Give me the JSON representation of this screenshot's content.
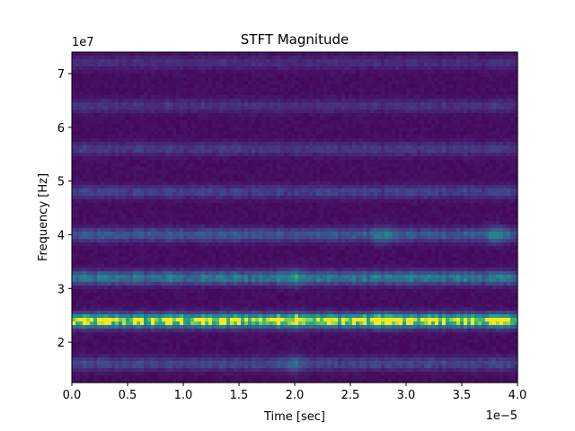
{
  "chart_data": {
    "type": "heatmap",
    "title": "STFT Magnitude",
    "xlabel": "Time [sec]",
    "ylabel": "Frequency [Hz]",
    "x_offset_label": "1e−5",
    "y_offset_label": "1e7",
    "xlim": [
      0,
      4.0
    ],
    "ylim": [
      1.25,
      7.4
    ],
    "x_ticks": [
      "0.0",
      "0.5",
      "1.0",
      "1.5",
      "2.0",
      "2.5",
      "3.0",
      "3.5",
      "4.0"
    ],
    "y_ticks": [
      "2",
      "3",
      "4",
      "5",
      "6",
      "7"
    ],
    "colormap": "viridis",
    "grid": false,
    "frequency_bands": [
      {
        "center": 1.6,
        "intensity": 0.22
      },
      {
        "center": 2.4,
        "intensity": 0.95
      },
      {
        "center": 3.2,
        "intensity": 0.45
      },
      {
        "center": 4.0,
        "intensity": 0.3
      },
      {
        "center": 4.8,
        "intensity": 0.2
      },
      {
        "center": 5.6,
        "intensity": 0.17
      },
      {
        "center": 6.4,
        "intensity": 0.14
      },
      {
        "center": 7.2,
        "intensity": 0.12
      }
    ],
    "hotspots": [
      {
        "time": 2.0,
        "freq": 2.4
      },
      {
        "time": 2.8,
        "freq": 2.4
      },
      {
        "time": 2.0,
        "freq": 3.2
      },
      {
        "time": 2.8,
        "freq": 4.0
      },
      {
        "time": 3.8,
        "freq": 4.0
      },
      {
        "time": 2.0,
        "freq": 1.6
      }
    ]
  }
}
